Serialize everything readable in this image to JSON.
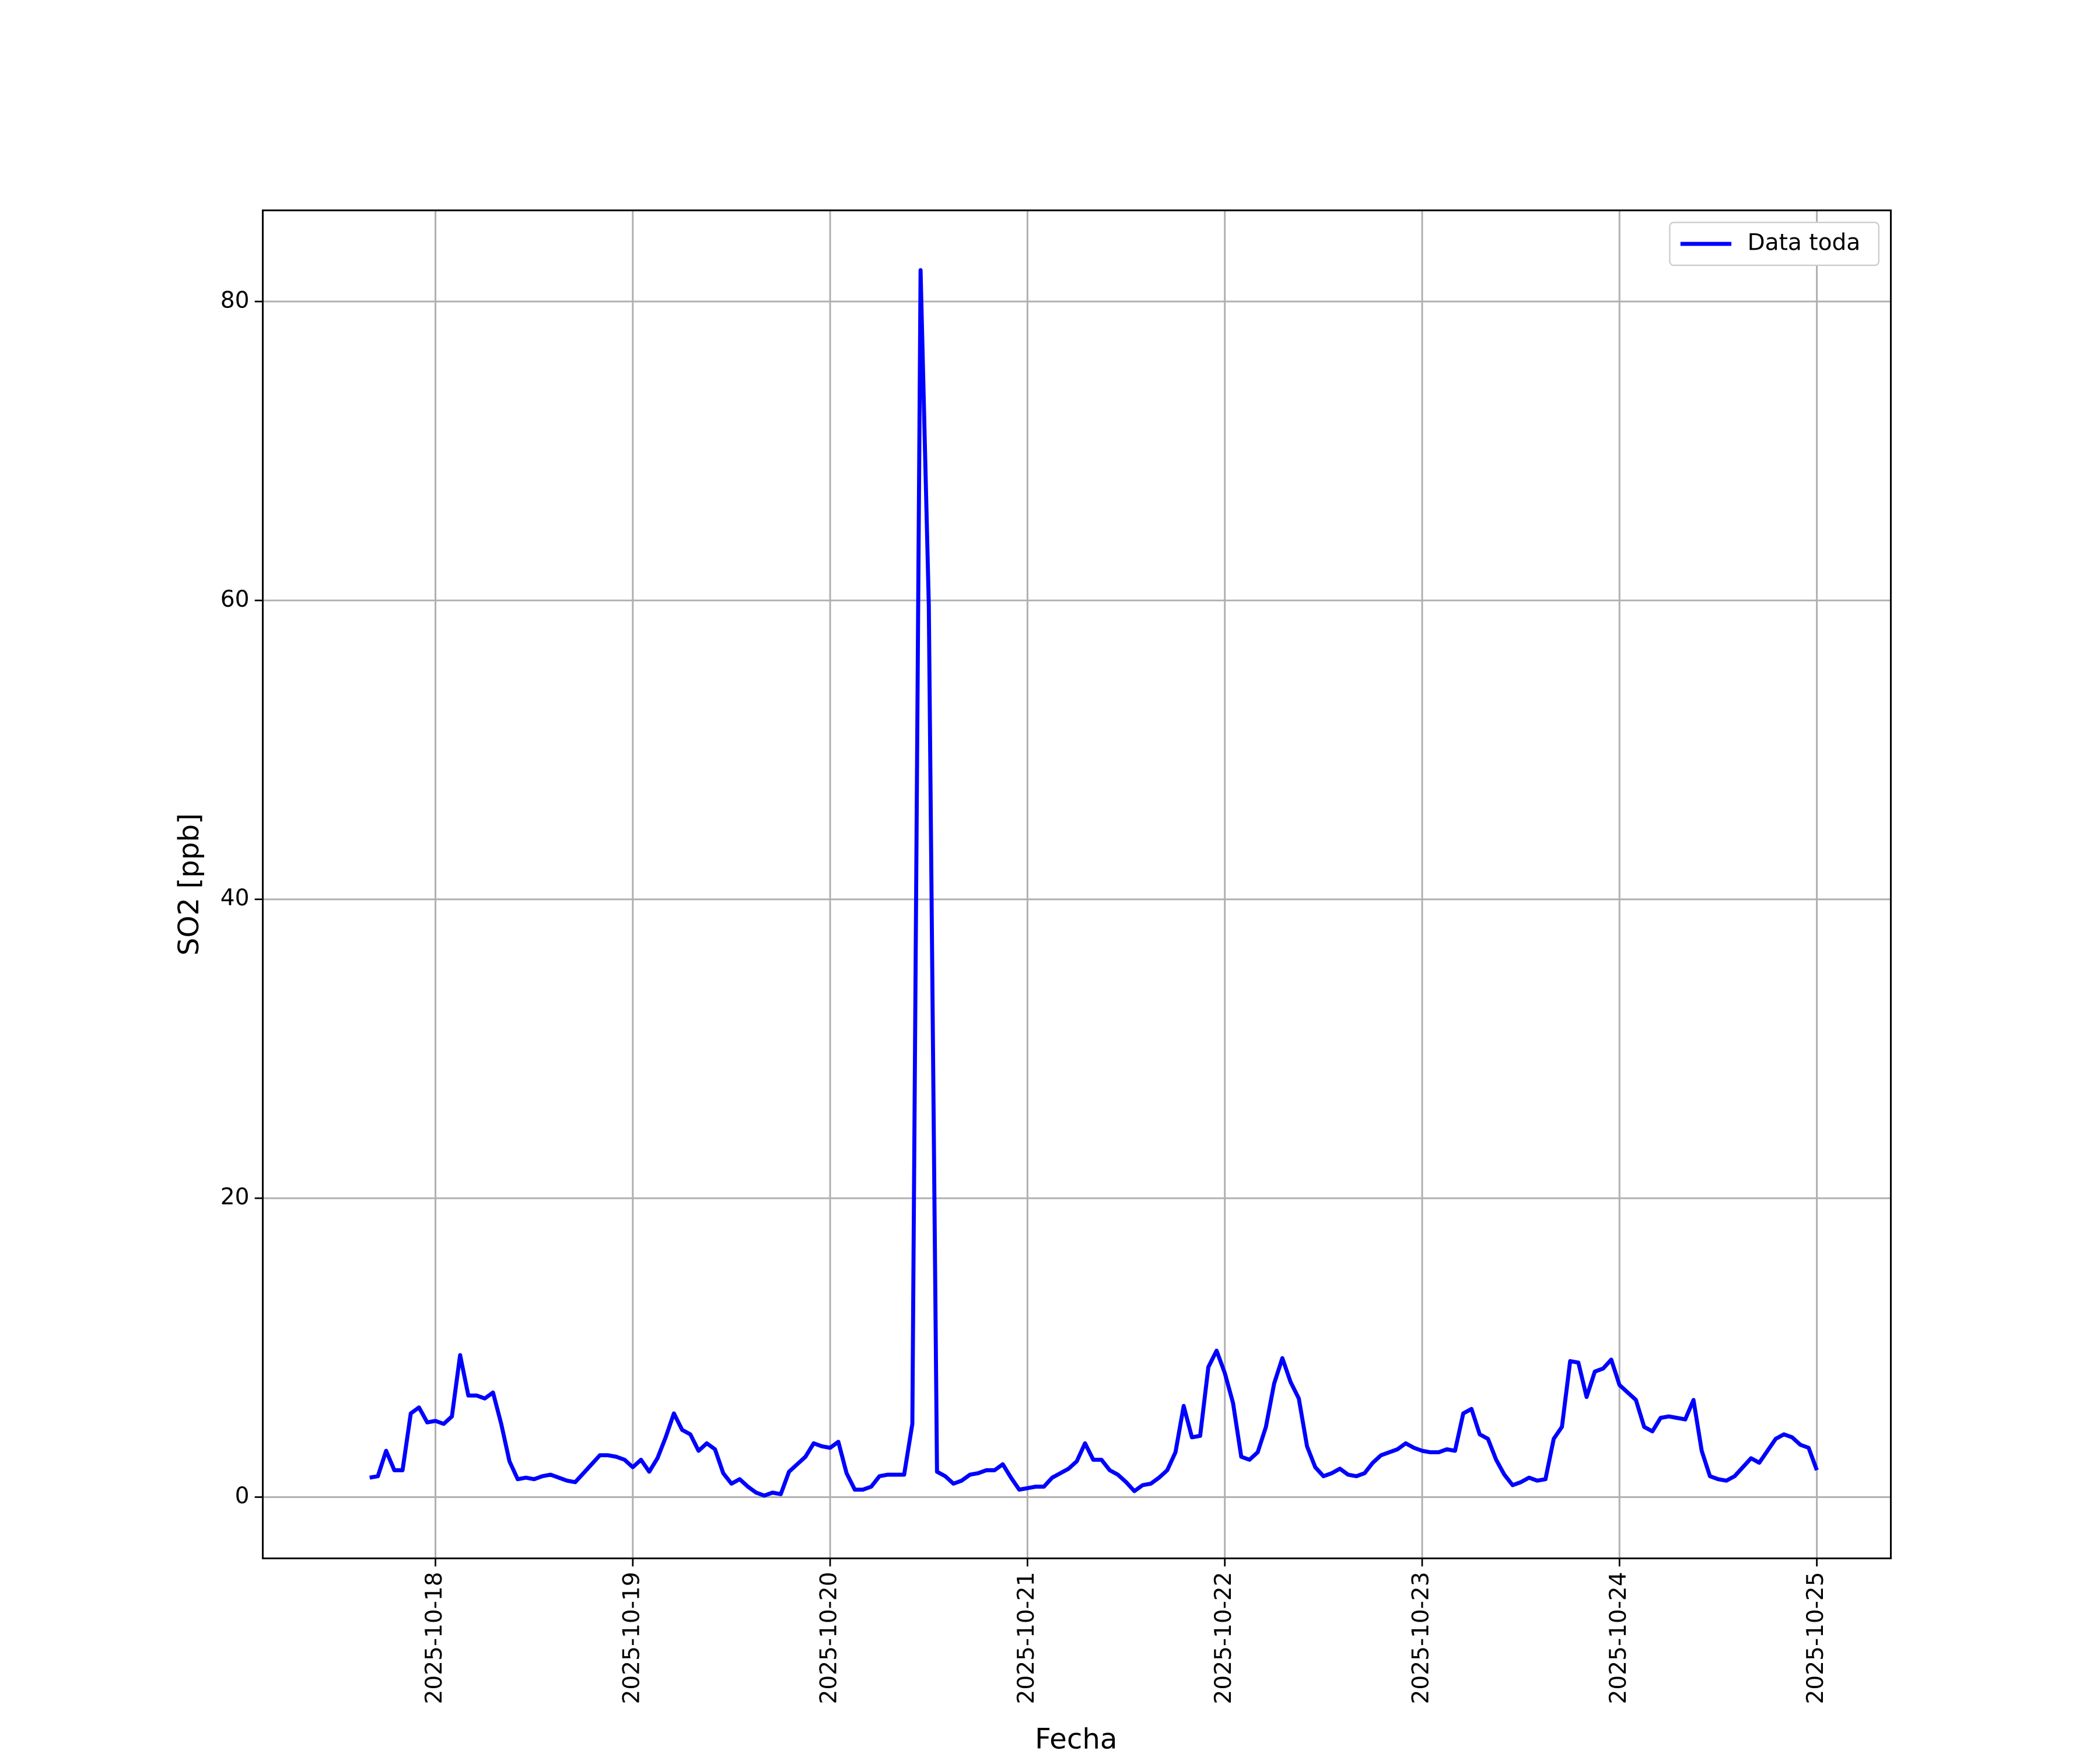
{
  "chart_data": {
    "type": "line",
    "xlabel": "Fecha",
    "ylabel": "SO2 [ppb]",
    "legend": "upper right",
    "grid": true,
    "x": [
      "2025-10-17T16:00",
      "2025-10-17T17:00",
      "2025-10-17T18:00",
      "2025-10-17T19:00",
      "2025-10-17T20:00",
      "2025-10-17T21:00",
      "2025-10-17T22:00",
      "2025-10-17T23:00",
      "2025-10-18T00:00",
      "2025-10-18T01:00",
      "2025-10-18T02:00",
      "2025-10-18T03:00",
      "2025-10-18T04:00",
      "2025-10-18T05:00",
      "2025-10-18T06:00",
      "2025-10-18T07:00",
      "2025-10-18T08:00",
      "2025-10-18T09:00",
      "2025-10-18T10:00",
      "2025-10-18T11:00",
      "2025-10-18T12:00",
      "2025-10-18T13:00",
      "2025-10-18T14:00",
      "2025-10-18T15:00",
      "2025-10-18T16:00",
      "2025-10-18T17:00",
      "2025-10-18T18:00",
      "2025-10-18T19:00",
      "2025-10-18T20:00",
      "2025-10-18T21:00",
      "2025-10-18T22:00",
      "2025-10-18T23:00",
      "2025-10-19T00:00",
      "2025-10-19T01:00",
      "2025-10-19T02:00",
      "2025-10-19T03:00",
      "2025-10-19T04:00",
      "2025-10-19T05:00",
      "2025-10-19T06:00",
      "2025-10-19T07:00",
      "2025-10-19T08:00",
      "2025-10-19T09:00",
      "2025-10-19T10:00",
      "2025-10-19T11:00",
      "2025-10-19T12:00",
      "2025-10-19T13:00",
      "2025-10-19T14:00",
      "2025-10-19T15:00",
      "2025-10-19T16:00",
      "2025-10-19T17:00",
      "2025-10-19T18:00",
      "2025-10-19T19:00",
      "2025-10-19T20:00",
      "2025-10-19T21:00",
      "2025-10-19T22:00",
      "2025-10-19T23:00",
      "2025-10-20T00:00",
      "2025-10-20T01:00",
      "2025-10-20T02:00",
      "2025-10-20T03:00",
      "2025-10-20T04:00",
      "2025-10-20T05:00",
      "2025-10-20T06:00",
      "2025-10-20T07:00",
      "2025-10-20T08:00",
      "2025-10-20T09:00",
      "2025-10-20T10:00",
      "2025-10-20T11:00",
      "2025-10-20T12:00",
      "2025-10-20T13:00",
      "2025-10-20T14:00",
      "2025-10-20T15:00",
      "2025-10-20T16:00",
      "2025-10-20T17:00",
      "2025-10-20T18:00",
      "2025-10-20T19:00",
      "2025-10-20T20:00",
      "2025-10-20T21:00",
      "2025-10-20T22:00",
      "2025-10-20T23:00",
      "2025-10-21T00:00",
      "2025-10-21T01:00",
      "2025-10-21T02:00",
      "2025-10-21T03:00",
      "2025-10-21T04:00",
      "2025-10-21T05:00",
      "2025-10-21T06:00",
      "2025-10-21T07:00",
      "2025-10-21T08:00",
      "2025-10-21T09:00",
      "2025-10-21T10:00",
      "2025-10-21T11:00",
      "2025-10-21T12:00",
      "2025-10-21T13:00",
      "2025-10-21T14:00",
      "2025-10-21T15:00",
      "2025-10-21T16:00",
      "2025-10-21T17:00",
      "2025-10-21T18:00",
      "2025-10-21T19:00",
      "2025-10-21T20:00",
      "2025-10-21T21:00",
      "2025-10-21T22:00",
      "2025-10-21T23:00",
      "2025-10-22T00:00",
      "2025-10-22T01:00",
      "2025-10-22T02:00",
      "2025-10-22T03:00",
      "2025-10-22T04:00",
      "2025-10-22T05:00",
      "2025-10-22T06:00",
      "2025-10-22T07:00",
      "2025-10-22T08:00",
      "2025-10-22T09:00",
      "2025-10-22T10:00",
      "2025-10-22T11:00",
      "2025-10-22T12:00",
      "2025-10-22T13:00",
      "2025-10-22T14:00",
      "2025-10-22T15:00",
      "2025-10-22T16:00",
      "2025-10-22T17:00",
      "2025-10-22T18:00",
      "2025-10-22T19:00",
      "2025-10-22T20:00",
      "2025-10-22T21:00",
      "2025-10-22T22:00",
      "2025-10-22T23:00",
      "2025-10-23T00:00",
      "2025-10-23T01:00",
      "2025-10-23T02:00",
      "2025-10-23T03:00",
      "2025-10-23T04:00",
      "2025-10-23T05:00",
      "2025-10-23T06:00",
      "2025-10-23T07:00",
      "2025-10-23T08:00",
      "2025-10-23T09:00",
      "2025-10-23T10:00",
      "2025-10-23T11:00",
      "2025-10-23T12:00",
      "2025-10-23T13:00",
      "2025-10-23T14:00",
      "2025-10-23T15:00",
      "2025-10-23T16:00",
      "2025-10-23T17:00",
      "2025-10-23T18:00",
      "2025-10-23T19:00",
      "2025-10-23T20:00",
      "2025-10-23T21:00",
      "2025-10-23T22:00",
      "2025-10-23T23:00",
      "2025-10-24T00:00",
      "2025-10-24T01:00",
      "2025-10-24T02:00",
      "2025-10-24T03:00",
      "2025-10-24T04:00",
      "2025-10-24T05:00",
      "2025-10-24T06:00",
      "2025-10-24T07:00",
      "2025-10-24T08:00",
      "2025-10-24T09:00",
      "2025-10-24T10:00",
      "2025-10-24T11:00",
      "2025-10-24T12:00",
      "2025-10-24T13:00",
      "2025-10-24T14:00",
      "2025-10-24T15:00",
      "2025-10-24T16:00",
      "2025-10-24T17:00",
      "2025-10-24T18:00",
      "2025-10-24T19:00",
      "2025-10-24T20:00",
      "2025-10-24T21:00",
      "2025-10-24T22:00",
      "2025-10-24T23:00",
      "2025-10-25T00:00"
    ],
    "series": [
      {
        "name": "Data toda",
        "color": "#0000ff",
        "values": [
          1.3,
          1.4,
          3.1,
          1.8,
          1.8,
          5.6,
          6.0,
          5.0,
          5.1,
          4.9,
          5.4,
          9.5,
          6.8,
          6.8,
          6.6,
          7.0,
          4.9,
          2.4,
          1.2,
          1.3,
          1.2,
          1.4,
          1.5,
          1.3,
          1.1,
          1.0,
          1.6,
          2.2,
          2.8,
          2.8,
          2.7,
          2.5,
          2.0,
          2.5,
          1.7,
          2.6,
          4.0,
          5.6,
          4.5,
          4.2,
          3.1,
          3.6,
          3.2,
          1.6,
          0.9,
          1.2,
          0.7,
          0.3,
          0.1,
          0.3,
          0.2,
          1.7,
          2.2,
          2.7,
          3.6,
          3.4,
          3.3,
          3.7,
          1.6,
          0.5,
          0.5,
          0.7,
          1.4,
          1.5,
          1.5,
          1.5,
          4.9,
          82.1,
          59.7,
          1.7,
          1.4,
          0.9,
          1.1,
          1.5,
          1.6,
          1.8,
          1.8,
          2.2,
          1.3,
          0.5,
          0.6,
          0.7,
          0.7,
          1.3,
          1.6,
          1.9,
          2.4,
          3.6,
          2.5,
          2.5,
          1.8,
          1.5,
          1.0,
          0.4,
          0.8,
          0.9,
          1.3,
          1.8,
          3.0,
          6.1,
          4.0,
          4.1,
          8.7,
          9.8,
          8.3,
          6.3,
          2.7,
          2.5,
          3.0,
          4.7,
          7.6,
          9.3,
          7.7,
          6.6,
          3.4,
          2.0,
          1.4,
          1.6,
          1.9,
          1.5,
          1.4,
          1.6,
          2.3,
          2.8,
          3.0,
          3.2,
          3.6,
          3.3,
          3.1,
          3.0,
          3.0,
          3.2,
          3.1,
          5.6,
          5.9,
          4.2,
          3.9,
          2.5,
          1.5,
          0.8,
          1.0,
          1.3,
          1.1,
          1.2,
          3.9,
          4.7,
          9.1,
          9.0,
          6.7,
          8.4,
          8.6,
          9.2,
          7.5,
          7.0,
          6.5,
          4.7,
          4.4,
          5.3,
          5.4,
          5.3,
          5.2,
          6.5,
          3.1,
          1.4,
          1.2,
          1.1,
          1.4,
          2.0,
          2.6,
          2.3,
          3.1,
          3.9,
          4.2,
          4.0,
          3.5,
          3.3,
          1.8
        ]
      }
    ],
    "xlim": [
      "2025-10-17T03:00",
      "2025-10-25T09:00"
    ],
    "xticks": [
      {
        "value": "2025-10-18T00:00",
        "label": "2025-10-18"
      },
      {
        "value": "2025-10-19T00:00",
        "label": "2025-10-19"
      },
      {
        "value": "2025-10-20T00:00",
        "label": "2025-10-20"
      },
      {
        "value": "2025-10-21T00:00",
        "label": "2025-10-21"
      },
      {
        "value": "2025-10-22T00:00",
        "label": "2025-10-22"
      },
      {
        "value": "2025-10-23T00:00",
        "label": "2025-10-23"
      },
      {
        "value": "2025-10-24T00:00",
        "label": "2025-10-24"
      },
      {
        "value": "2025-10-25T00:00",
        "label": "2025-10-25"
      }
    ],
    "ylim": [
      -4.1,
      86.1
    ],
    "yticks": [
      0,
      20,
      40,
      60,
      80
    ]
  }
}
